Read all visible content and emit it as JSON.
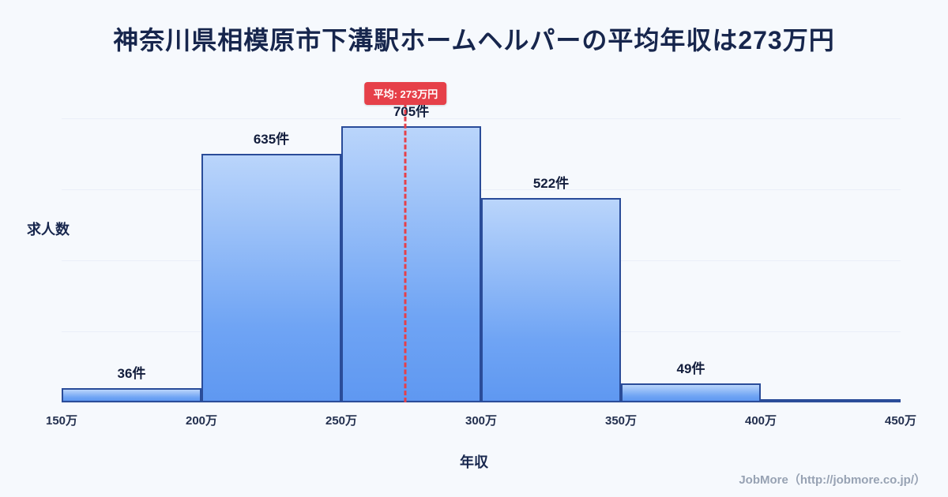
{
  "page": {
    "background": "#f6f9fd",
    "footer": "JobMore（http://jobmore.co.jp/）"
  },
  "chart_data": {
    "type": "bar",
    "title": "神奈川県相模原市下溝駅ホームヘルパーの平均年収は273万円",
    "xlabel": "年収",
    "ylabel": "求人数",
    "x_ticks": [
      "150万",
      "200万",
      "250万",
      "300万",
      "350万",
      "400万",
      "450万"
    ],
    "bins": [
      [
        150,
        200
      ],
      [
        200,
        250
      ],
      [
        250,
        300
      ],
      [
        300,
        350
      ],
      [
        350,
        400
      ],
      [
        400,
        450
      ]
    ],
    "values": [
      36,
      635,
      705,
      522,
      49,
      8
    ],
    "bar_labels": [
      "36件",
      "635件",
      "705件",
      "522件",
      "49件",
      ""
    ],
    "x_range": [
      150,
      450
    ],
    "ylim": [
      0,
      725
    ],
    "grid": "faint-horizontal",
    "legend": "none",
    "average": {
      "value": 273,
      "label": "平均: 273万円"
    },
    "colors": {
      "bar_fill_top": "#bad5fb",
      "bar_fill_bottom": "#5f98f1",
      "bar_border": "#2a4c99",
      "average_line": "#e64049",
      "badge_background": "#e64049",
      "badge_text": "#ffffff",
      "title_text": "#17264d",
      "background": "#f6f9fd"
    }
  }
}
